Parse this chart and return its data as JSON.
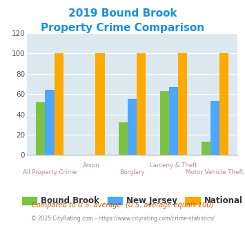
{
  "title_line1": "2019 Bound Brook",
  "title_line2": "Property Crime Comparison",
  "title_color": "#1a8fe0",
  "categories": [
    "All Property Crime",
    "Arson",
    "Burglary",
    "Larceny & Theft",
    "Motor Vehicle Theft"
  ],
  "bound_brook": [
    52,
    0,
    32,
    63,
    13
  ],
  "new_jersey": [
    64,
    0,
    55,
    67,
    53
  ],
  "national": [
    100,
    100,
    100,
    100,
    100
  ],
  "color_bound_brook": "#7dc242",
  "color_new_jersey": "#4da6ff",
  "color_national": "#ffaa00",
  "ylim": [
    0,
    120
  ],
  "yticks": [
    0,
    20,
    40,
    60,
    80,
    100,
    120
  ],
  "plot_bg": "#dce9f0",
  "xlabel_color": "#b08898",
  "footnote1": "Compared to U.S. average. (U.S. average equals 100)",
  "footnote2": "© 2025 CityRating.com - https://www.cityrating.com/crime-statistics/",
  "footnote1_color": "#cc5500",
  "footnote2_color": "#888888",
  "legend_labels": [
    "Bound Brook",
    "New Jersey",
    "National"
  ],
  "bar_width": 0.22
}
